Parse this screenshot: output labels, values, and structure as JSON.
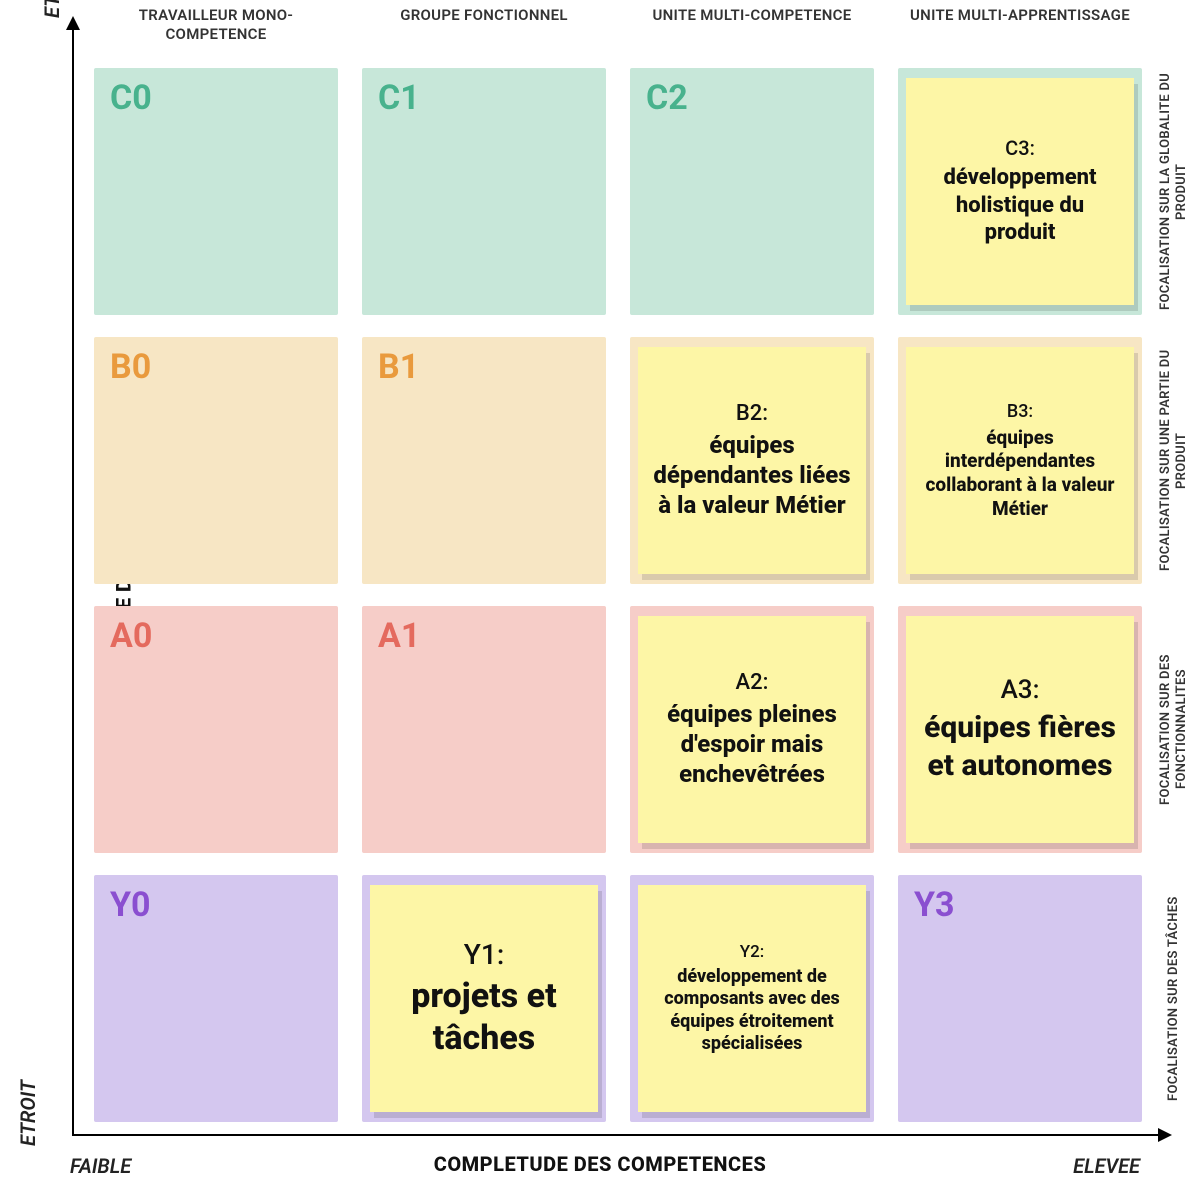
{
  "axes": {
    "y": {
      "label": "PERIMETRE DU TRAVAIL",
      "low": "ETROIT",
      "high": "ETENDU"
    },
    "x": {
      "label": "COMPLETUDE DES COMPETENCES",
      "low": "FAIBLE",
      "high": "ELEVEE"
    }
  },
  "colHeaders": [
    "TRAVAILLEUR MONO-COMPETENCE",
    "GROUPE FONCTIONNEL",
    "UNITE MULTI-COMPETENCE",
    "UNITE MULTI-APPRENTISSAGE"
  ],
  "rowLabels": [
    "FOCALISATION SUR LA GLOBALITE DU PRODUIT",
    "FOCALISATION SUR UNE PARTIE DU PRODUIT",
    "FOCALISATION SUR DES FONCTIONNALITES",
    "FOCALISATION SUR DES TÂCHES"
  ],
  "rows": [
    {
      "key": "C",
      "bg": "#c7e7d9",
      "codeColor": "#48b28d"
    },
    {
      "key": "B",
      "bg": "#f7e6c4",
      "codeColor": "#e99a3d"
    },
    {
      "key": "A",
      "bg": "#f6cdc8",
      "codeColor": "#e46a5e"
    },
    {
      "key": "Y",
      "bg": "#d4c7ef",
      "codeColor": "#8a4fd0"
    }
  ],
  "noteStyle": {
    "bg": "#fdf6a6",
    "shadow": "rgba(0,0,0,0.12)"
  },
  "cells": [
    [
      {
        "code": "C0"
      },
      {
        "code": "C1"
      },
      {
        "code": "C2"
      },
      {
        "note": {
          "code": "C3:",
          "text": "développement holistique du produit",
          "codeSize": 20,
          "textSize": 22
        }
      }
    ],
    [
      {
        "code": "B0"
      },
      {
        "code": "B1"
      },
      {
        "note": {
          "code": "B2:",
          "text": "équipes dépendantes liées à la valeur Métier",
          "codeSize": 22,
          "textSize": 24
        }
      },
      {
        "note": {
          "code": "B3:",
          "text": "équipes interdépendantes collaborant à la valeur Métier",
          "codeSize": 18,
          "textSize": 19
        }
      }
    ],
    [
      {
        "code": "A0"
      },
      {
        "code": "A1"
      },
      {
        "note": {
          "code": "A2:",
          "text": "équipes pleines d'espoir mais enchevêtrées",
          "codeSize": 22,
          "textSize": 24
        }
      },
      {
        "note": {
          "code": "A3:",
          "text": "équipes fières et autonomes",
          "codeSize": 26,
          "textSize": 30
        }
      }
    ],
    [
      {
        "code": "Y0"
      },
      {
        "note": {
          "code": "Y1:",
          "text": "projets et tâches",
          "codeSize": 28,
          "textSize": 34
        }
      },
      {
        "note": {
          "code": "Y2:",
          "text": "développement de composants avec des équipes étroitement spécialisées",
          "codeSize": 17,
          "textSize": 18
        }
      },
      {
        "code": "Y3"
      }
    ]
  ]
}
